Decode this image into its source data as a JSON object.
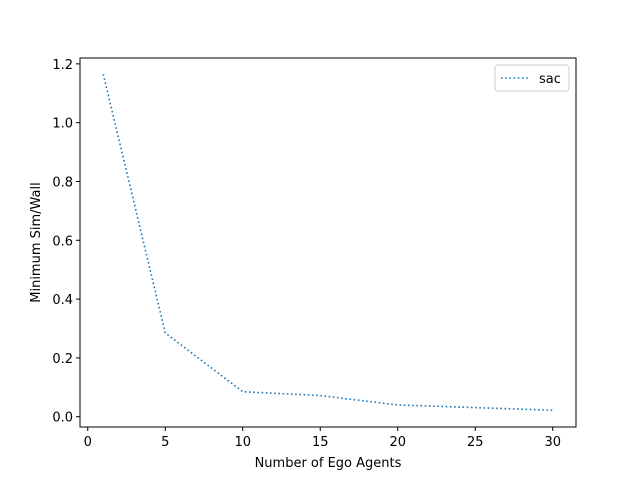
{
  "chart_data": {
    "type": "line",
    "title": "",
    "xlabel": "Number of Ego Agents",
    "ylabel": "Minimum Sim/Wall",
    "xlim": [
      -0.5,
      31.5
    ],
    "ylim": [
      -0.035,
      1.22
    ],
    "xticks": [
      0,
      5,
      10,
      15,
      20,
      25,
      30
    ],
    "yticks": [
      0.0,
      0.2,
      0.4,
      0.6,
      0.8,
      1.0,
      1.2
    ],
    "ytick_labels": [
      "0.0",
      "0.2",
      "0.4",
      "0.6",
      "0.8",
      "1.0",
      "1.2"
    ],
    "grid": false,
    "legend_position": "upper right",
    "series": [
      {
        "name": "sac",
        "color": "#1f77b4",
        "line_style": "dotted",
        "x": [
          1,
          5,
          10,
          15,
          20,
          30
        ],
        "y": [
          1.165,
          0.285,
          0.085,
          0.072,
          0.04,
          0.022
        ]
      }
    ]
  }
}
